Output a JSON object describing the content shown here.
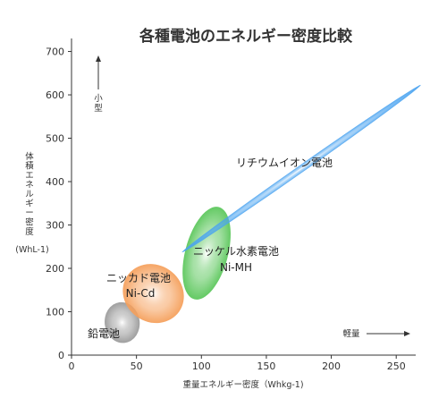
{
  "chart_data": {
    "type": "scatter",
    "title": "各種電池のエネルギー密度比較",
    "xlabel": "重量エネルギー密度（Whkg-1)",
    "ylabel_lines": [
      "体",
      "積",
      "エ",
      "ネ",
      "ル",
      "ギ",
      "ー",
      "密",
      "度"
    ],
    "yunit": "(WhL-1)",
    "xlim": [
      0,
      265
    ],
    "ylim": [
      0,
      730
    ],
    "xticks": [
      0,
      50,
      100,
      150,
      200,
      250
    ],
    "yticks": [
      0,
      100,
      200,
      300,
      400,
      500,
      600,
      700
    ],
    "grid": false,
    "annotations": {
      "small_label": "小型",
      "light_label": "軽量"
    },
    "series": [
      {
        "name": "鉛電池",
        "label_lines": [
          "鉛電池"
        ],
        "color": "#9a9a9a",
        "center": [
          39,
          75
        ],
        "x_range": [
          25,
          52
        ],
        "y_range": [
          28,
          122
        ],
        "angle_deg": -8
      },
      {
        "name": "ニッカド電池",
        "label_lines": [
          "ニッカド電池",
          "Ni-Cd"
        ],
        "color": "#f5a05c",
        "center": [
          63,
          142
        ],
        "x_range": [
          38,
          85
        ],
        "y_range": [
          72,
          208
        ],
        "angle_deg": -55
      },
      {
        "name": "ニッケル水素電池",
        "label_lines": [
          "ニッケル水素電池",
          "Ni-MH"
        ],
        "color": "#5cc75c",
        "center": [
          104,
          235
        ],
        "x_range": [
          86,
          123
        ],
        "y_range": [
          148,
          362
        ],
        "angle_deg": -75
      },
      {
        "name": "リチウムイオン電池",
        "label_lines": [
          "リチウムイオン電池"
        ],
        "color": "#4aa3f0",
        "center": [
          177,
          430
        ],
        "x_range": [
          88,
          262
        ],
        "y_range": [
          300,
          590
        ],
        "angle_deg": -35
      }
    ]
  }
}
